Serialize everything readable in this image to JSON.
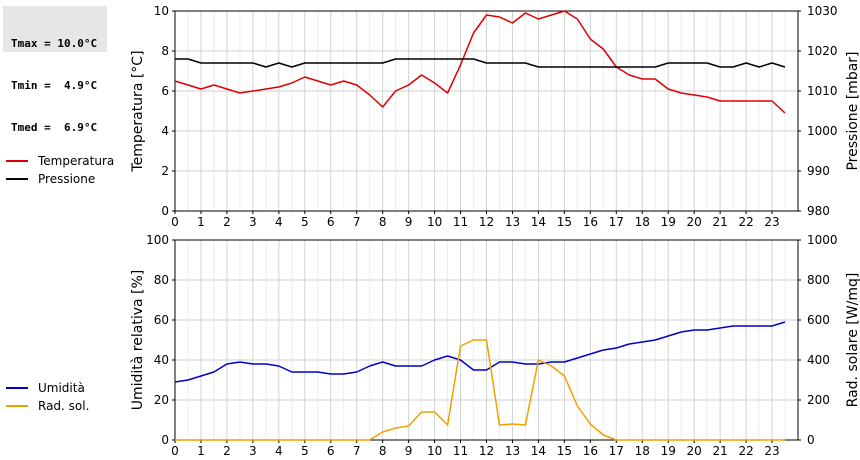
{
  "stats": {
    "tmax": "Tmax = 10.0°C",
    "tmin": "Tmin =  4.9°C",
    "tmed": "Tmed =  6.9°C"
  },
  "legend_top": [
    {
      "label": "Temperatura",
      "color": "#dd0000"
    },
    {
      "label": "Pressione",
      "color": "#000000"
    }
  ],
  "legend_bottom": [
    {
      "label": "Umidità",
      "color": "#0000cc"
    },
    {
      "label": "Rad. sol.",
      "color": "#f0a000"
    }
  ],
  "chart_data": [
    {
      "type": "line",
      "xlim": [
        0,
        24
      ],
      "x_ticks": [
        "0",
        "1",
        "2",
        "3",
        "4",
        "5",
        "6",
        "7",
        "8",
        "9",
        "10",
        "11",
        "12",
        "13",
        "14",
        "15",
        "16",
        "17",
        "18",
        "19",
        "20",
        "21",
        "22",
        "23"
      ],
      "ylabel": "Temperatura [°C]",
      "ylim": [
        0,
        10
      ],
      "y_ticks": [
        "0",
        "2",
        "4",
        "6",
        "8",
        "10"
      ],
      "y2label": "Pressione [mbar]",
      "y2lim": [
        980,
        1030
      ],
      "y2_ticks": [
        "980",
        "990",
        "1000",
        "1010",
        "1020",
        "1030"
      ],
      "grid": true,
      "series": [
        {
          "name": "Temperatura",
          "axis": "left",
          "color": "#dd0000",
          "x": [
            0,
            0.5,
            1,
            1.5,
            2,
            2.5,
            3,
            3.5,
            4,
            4.5,
            5,
            5.5,
            6,
            6.5,
            7,
            7.5,
            8,
            8.5,
            9,
            9.5,
            10,
            10.5,
            11,
            11.5,
            12,
            12.5,
            13,
            13.5,
            14,
            14.5,
            15,
            15.5,
            16,
            16.5,
            17,
            17.5,
            18,
            18.5,
            19,
            19.5,
            20,
            20.5,
            21,
            21.5,
            22,
            22.5,
            23,
            23.5
          ],
          "values": [
            6.5,
            6.3,
            6.1,
            6.3,
            6.1,
            5.9,
            6.0,
            6.1,
            6.2,
            6.4,
            6.7,
            6.5,
            6.3,
            6.5,
            6.3,
            5.8,
            5.2,
            6.0,
            6.3,
            6.8,
            6.4,
            5.9,
            7.3,
            8.9,
            9.8,
            9.7,
            9.4,
            9.9,
            9.6,
            9.8,
            10.0,
            9.6,
            8.6,
            8.1,
            7.2,
            6.8,
            6.6,
            6.6,
            6.1,
            5.9,
            5.8,
            5.7,
            5.5,
            5.5,
            5.5,
            5.5,
            5.5,
            4.9
          ]
        },
        {
          "name": "Pressione",
          "axis": "right",
          "color": "#000000",
          "x": [
            0,
            0.5,
            1,
            1.5,
            2,
            2.5,
            3,
            3.5,
            4,
            4.5,
            5,
            5.5,
            6,
            6.5,
            7,
            7.5,
            8,
            8.5,
            9,
            9.5,
            10,
            10.5,
            11,
            11.5,
            12,
            12.5,
            13,
            13.5,
            14,
            14.5,
            15,
            15.5,
            16,
            16.5,
            17,
            17.5,
            18,
            18.5,
            19,
            19.5,
            20,
            20.5,
            21,
            21.5,
            22,
            22.5,
            23,
            23.5
          ],
          "values": [
            1018,
            1018,
            1017,
            1017,
            1017,
            1017,
            1017,
            1016,
            1017,
            1016,
            1017,
            1017,
            1017,
            1017,
            1017,
            1017,
            1017,
            1018,
            1018,
            1018,
            1018,
            1018,
            1018,
            1018,
            1017,
            1017,
            1017,
            1017,
            1016,
            1016,
            1016,
            1016,
            1016,
            1016,
            1016,
            1016,
            1016,
            1016,
            1017,
            1017,
            1017,
            1017,
            1016,
            1016,
            1017,
            1016,
            1017,
            1016
          ]
        }
      ]
    },
    {
      "type": "line",
      "xlim": [
        0,
        24
      ],
      "x_ticks": [
        "0",
        "1",
        "2",
        "3",
        "4",
        "5",
        "6",
        "7",
        "8",
        "9",
        "10",
        "11",
        "12",
        "13",
        "14",
        "15",
        "16",
        "17",
        "18",
        "19",
        "20",
        "21",
        "22",
        "23"
      ],
      "ylabel": "Umidità relativa [%]",
      "ylim": [
        0,
        100
      ],
      "y_ticks": [
        "0",
        "20",
        "40",
        "60",
        "80",
        "100"
      ],
      "y2label": "Rad. solare [W/mq]",
      "y2lim": [
        0,
        1000
      ],
      "y2_ticks": [
        "0",
        "200",
        "400",
        "600",
        "800",
        "1000"
      ],
      "grid": true,
      "series": [
        {
          "name": "Umidità",
          "axis": "left",
          "color": "#0000cc",
          "x": [
            0,
            0.5,
            1,
            1.5,
            2,
            2.5,
            3,
            3.5,
            4,
            4.5,
            5,
            5.5,
            6,
            6.5,
            7,
            7.5,
            8,
            8.5,
            9,
            9.5,
            10,
            10.5,
            11,
            11.5,
            12,
            12.5,
            13,
            13.5,
            14,
            14.5,
            15,
            15.5,
            16,
            16.5,
            17,
            17.5,
            18,
            18.5,
            19,
            19.5,
            20,
            20.5,
            21,
            21.5,
            22,
            22.5,
            23,
            23.5
          ],
          "values": [
            29,
            30,
            32,
            34,
            38,
            39,
            38,
            38,
            37,
            34,
            34,
            34,
            33,
            33,
            34,
            37,
            39,
            37,
            37,
            37,
            40,
            42,
            40,
            35,
            35,
            39,
            39,
            38,
            38,
            39,
            39,
            41,
            43,
            45,
            46,
            48,
            49,
            50,
            52,
            54,
            55,
            55,
            56,
            57,
            57,
            57,
            57,
            59
          ]
        },
        {
          "name": "Rad. sol.",
          "axis": "right",
          "color": "#f0a000",
          "x": [
            0,
            0.5,
            1,
            1.5,
            2,
            2.5,
            3,
            3.5,
            4,
            4.5,
            5,
            5.5,
            6,
            6.5,
            7,
            7.5,
            8,
            8.5,
            9,
            9.5,
            10,
            10.5,
            11,
            11.5,
            12,
            12.5,
            13,
            13.5,
            14,
            14.5,
            15,
            15.5,
            16,
            16.5,
            17,
            17.5,
            18,
            18.5,
            19,
            19.5,
            20,
            20.5,
            21,
            21.5,
            22,
            22.5,
            23,
            23.5
          ],
          "values": [
            0,
            0,
            0,
            0,
            0,
            0,
            0,
            0,
            0,
            0,
            0,
            0,
            0,
            0,
            0,
            0,
            40,
            60,
            70,
            140,
            140,
            75,
            470,
            500,
            500,
            75,
            80,
            75,
            400,
            370,
            320,
            170,
            80,
            25,
            0,
            0,
            0,
            0,
            0,
            0,
            0,
            0,
            0,
            0,
            0,
            0,
            0,
            0
          ]
        }
      ]
    }
  ]
}
